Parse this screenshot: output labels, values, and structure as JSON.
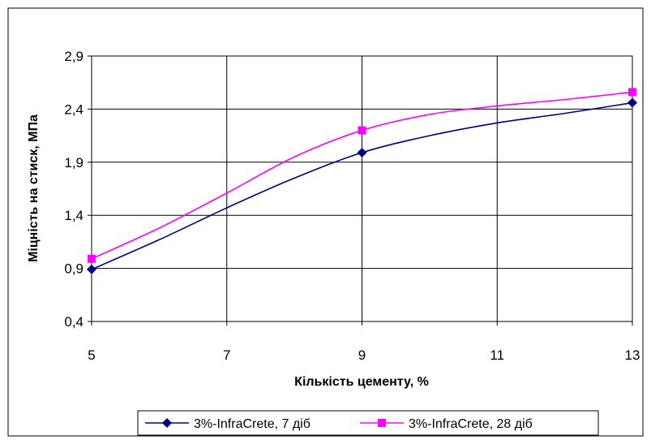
{
  "chart_data": {
    "type": "line",
    "title": "",
    "xlabel": "Кількість цементу, %",
    "ylabel": "Міцність на стиск, МПа",
    "xlim": [
      5,
      13
    ],
    "ylim": [
      0.4,
      2.9
    ],
    "x_ticks": [
      "5",
      "7",
      "9",
      "11",
      "13"
    ],
    "y_ticks": [
      "0,4",
      "0,9",
      "1,4",
      "1,9",
      "2,4",
      "2,9"
    ],
    "grid": true,
    "legend_position": "bottom",
    "series": [
      {
        "name": "3%-InfraCrete, 7 діб",
        "color": "#000080",
        "marker": "diamond",
        "markers": [
          {
            "x": 5,
            "y": 0.89
          },
          {
            "x": 9,
            "y": 1.99
          },
          {
            "x": 13,
            "y": 2.46
          }
        ],
        "curve": [
          {
            "x": 5,
            "y": 0.89
          },
          {
            "x": 6,
            "y": 1.17
          },
          {
            "x": 7,
            "y": 1.47
          },
          {
            "x": 8,
            "y": 1.75
          },
          {
            "x": 9,
            "y": 1.99
          },
          {
            "x": 10,
            "y": 2.15
          },
          {
            "x": 11,
            "y": 2.27
          },
          {
            "x": 12,
            "y": 2.36
          },
          {
            "x": 13,
            "y": 2.46
          }
        ]
      },
      {
        "name": "3%-InfraCrete, 28 діб",
        "color": "#ff00ff",
        "marker": "square",
        "markers": [
          {
            "x": 5,
            "y": 0.99
          },
          {
            "x": 9,
            "y": 2.2
          },
          {
            "x": 13,
            "y": 2.56
          }
        ],
        "curve": [
          {
            "x": 5,
            "y": 0.99
          },
          {
            "x": 6,
            "y": 1.28
          },
          {
            "x": 7,
            "y": 1.61
          },
          {
            "x": 8,
            "y": 1.95
          },
          {
            "x": 9,
            "y": 2.2
          },
          {
            "x": 10,
            "y": 2.35
          },
          {
            "x": 11,
            "y": 2.43
          },
          {
            "x": 12,
            "y": 2.49
          },
          {
            "x": 13,
            "y": 2.56
          }
        ]
      }
    ]
  }
}
